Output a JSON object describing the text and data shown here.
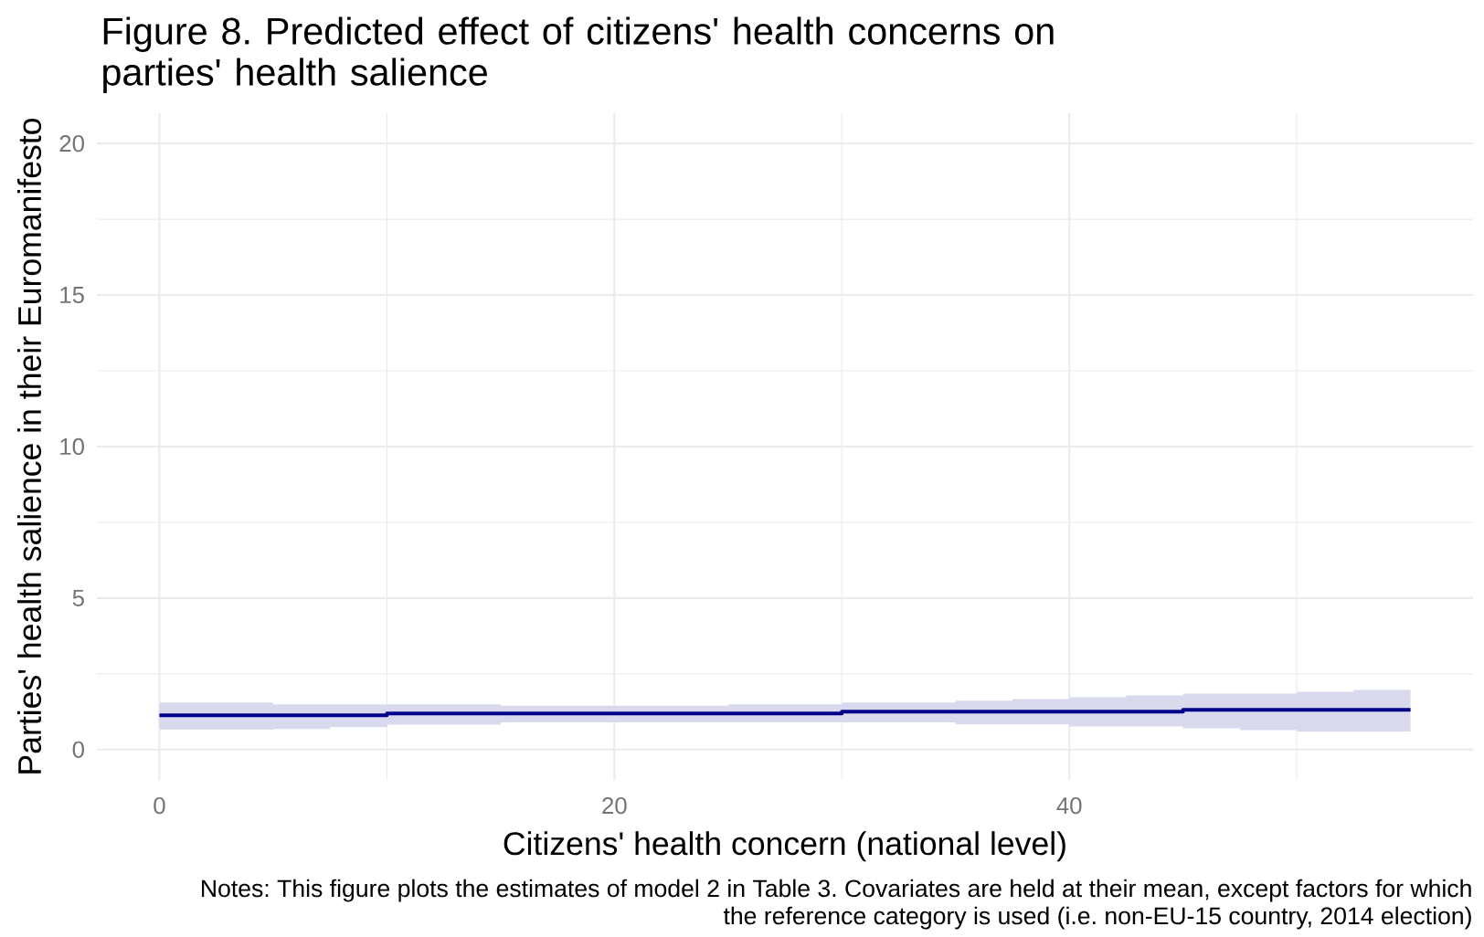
{
  "chart_data": {
    "type": "step",
    "title": "Figure 8. Predicted effect of citizens' health concerns on parties' health salience",
    "xlabel": "Citizens' health concern (national level)",
    "ylabel": "Parties' health salience in their Euromanifesto",
    "annotations": [
      "Notes: This figure plots the estimates of model 2 in Table 3. Covariates are held at their mean, except factors for which",
      "the reference category is used (i.e. non-EU-15 country, 2014 election)"
    ],
    "x": [
      0,
      2.5,
      5,
      7.5,
      10,
      12.5,
      15,
      17.5,
      20,
      22.5,
      25,
      27.5,
      30,
      32.5,
      35,
      37.5,
      40,
      42.5,
      45,
      47.5,
      50,
      52.5,
      55
    ],
    "series": [
      {
        "color": "#00008b",
        "values": [
          1.13,
          1.13,
          1.13,
          1.13,
          1.19,
          1.19,
          1.19,
          1.19,
          1.19,
          1.19,
          1.19,
          1.19,
          1.25,
          1.25,
          1.25,
          1.25,
          1.25,
          1.25,
          1.31,
          1.31,
          1.31,
          1.31,
          1.31
        ],
        "upper": [
          1.55,
          1.55,
          1.49,
          1.49,
          1.49,
          1.49,
          1.45,
          1.45,
          1.45,
          1.45,
          1.49,
          1.49,
          1.55,
          1.55,
          1.61,
          1.67,
          1.73,
          1.79,
          1.85,
          1.85,
          1.91,
          1.97,
          1.97
        ],
        "lower": [
          0.66,
          0.66,
          0.68,
          0.74,
          0.82,
          0.82,
          0.9,
          0.9,
          0.9,
          0.9,
          0.9,
          0.9,
          0.9,
          0.9,
          0.84,
          0.84,
          0.76,
          0.76,
          0.7,
          0.64,
          0.6,
          0.6,
          0.6
        ]
      }
    ],
    "xlim": [
      -2.75,
      57.75
    ],
    "xticks": [
      0,
      20,
      40
    ],
    "ylim": [
      -1,
      21
    ],
    "yticks": [
      0,
      5,
      10,
      15,
      20
    ],
    "grid": true
  }
}
